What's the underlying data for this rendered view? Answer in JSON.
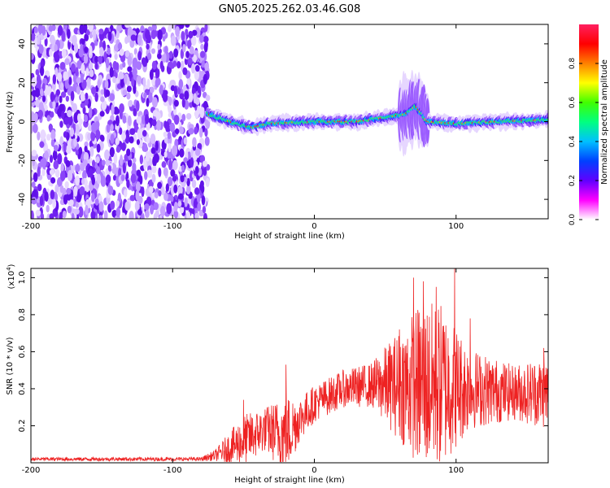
{
  "title": "GN05.2025.262.03.46.G08",
  "chart_data": [
    {
      "id": "spectrogram",
      "type": "heatmap",
      "xlabel": "Height of straight line (km)",
      "ylabel": "Frequency (Hz)",
      "xlim": [
        -200,
        165
      ],
      "ylim": [
        -50,
        50
      ],
      "xticks": [
        -200,
        -100,
        0,
        100
      ],
      "xtick_labels": [
        "-200",
        "-100",
        "0",
        "100"
      ],
      "yticks": [
        -40,
        -20,
        0,
        20,
        40
      ],
      "ytick_labels": [
        "-40",
        "-20",
        "0",
        "20",
        "40"
      ],
      "colorbar": {
        "label": "Normalized spectral amplitude",
        "range": [
          0,
          1
        ],
        "ticks": [
          0.0,
          0.2,
          0.4,
          0.6,
          0.8
        ],
        "tick_labels": [
          "0.0",
          "0.2",
          "0.4",
          "0.6",
          "0.8"
        ],
        "colormap": [
          "#ffffff",
          "#ff00ff",
          "#6000ff",
          "#0040ff",
          "#00c0ff",
          "#00ff80",
          "#40ff00",
          "#ffff00",
          "#ff8000",
          "#ff0000",
          "#ff2060"
        ]
      },
      "features": {
        "noise_region_x": [
          -200,
          -75
        ],
        "signal_track": [
          {
            "x": -75,
            "y": 4
          },
          {
            "x": -60,
            "y": 0
          },
          {
            "x": -45,
            "y": -3
          },
          {
            "x": -30,
            "y": -1
          },
          {
            "x": 0,
            "y": 0
          },
          {
            "x": 30,
            "y": 0
          },
          {
            "x": 50,
            "y": 2
          },
          {
            "x": 65,
            "y": 4
          },
          {
            "x": 72,
            "y": 8
          },
          {
            "x": 80,
            "y": 0
          },
          {
            "x": 100,
            "y": -1
          },
          {
            "x": 130,
            "y": 0
          },
          {
            "x": 165,
            "y": 1
          }
        ]
      }
    },
    {
      "id": "snr",
      "type": "line",
      "xlabel": "Height of straight line (km)",
      "ylabel": "SNR (10 * v/v)",
      "y_scale_label": "(x10",
      "y_scale_exponent": "4",
      "y_scale_close": ")",
      "xlim": [
        -200,
        165
      ],
      "ylim": [
        0,
        1.05
      ],
      "xticks": [
        -200,
        -100,
        0,
        100
      ],
      "xtick_labels": [
        "-200",
        "-100",
        "0",
        "100"
      ],
      "yticks": [
        0.2,
        0.4,
        0.6,
        0.8,
        1.0
      ],
      "ytick_labels": [
        "0.2",
        "0.4",
        "0.6",
        "0.8",
        "1.0"
      ],
      "series": [
        {
          "name": "SNR",
          "color": "#ee2222",
          "envelope": [
            {
              "x": -200,
              "base": 0.02,
              "amp": 0.01
            },
            {
              "x": -80,
              "base": 0.02,
              "amp": 0.01
            },
            {
              "x": -70,
              "base": 0.04,
              "amp": 0.03
            },
            {
              "x": -50,
              "base": 0.12,
              "amp": 0.14
            },
            {
              "x": -35,
              "base": 0.18,
              "amp": 0.12
            },
            {
              "x": -20,
              "base": 0.15,
              "amp": 0.22
            },
            {
              "x": -10,
              "base": 0.24,
              "amp": 0.12
            },
            {
              "x": 0,
              "base": 0.32,
              "amp": 0.1
            },
            {
              "x": 20,
              "base": 0.4,
              "amp": 0.1
            },
            {
              "x": 40,
              "base": 0.42,
              "amp": 0.12
            },
            {
              "x": 60,
              "base": 0.42,
              "amp": 0.3
            },
            {
              "x": 75,
              "base": 0.42,
              "amp": 0.45
            },
            {
              "x": 90,
              "base": 0.42,
              "amp": 0.45
            },
            {
              "x": 110,
              "base": 0.4,
              "amp": 0.22
            },
            {
              "x": 140,
              "base": 0.38,
              "amp": 0.15
            },
            {
              "x": 165,
              "base": 0.38,
              "amp": 0.2
            }
          ],
          "spikes": [
            {
              "x": -50,
              "y": 0.34
            },
            {
              "x": -20,
              "y": 0.53
            },
            {
              "x": 60,
              "y": 0.72
            },
            {
              "x": 70,
              "y": 1.0
            },
            {
              "x": 77,
              "y": 0.98
            },
            {
              "x": 86,
              "y": 0.95
            },
            {
              "x": 99,
              "y": 1.05
            },
            {
              "x": 110,
              "y": 0.78
            },
            {
              "x": 162,
              "y": 0.62
            }
          ]
        }
      ]
    }
  ]
}
